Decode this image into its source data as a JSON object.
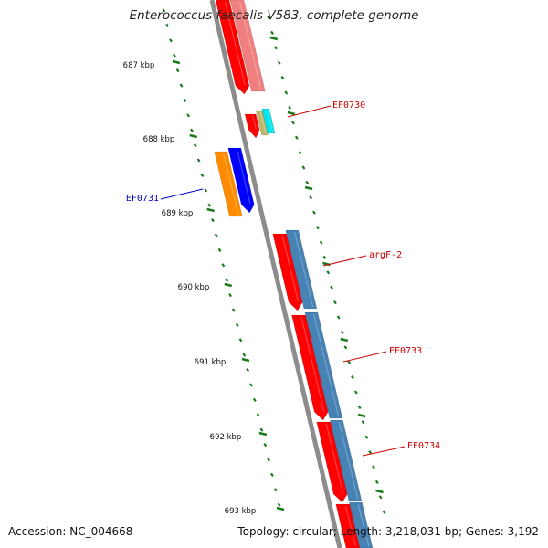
{
  "title": "Enterococcus faecalis V583, complete genome",
  "footer": {
    "accession": "Accession: NC_004668",
    "summary": "Topology: circular; Length: 3,218,031 bp; Genes: 3,192"
  },
  "colors": {
    "backbone": "#8c8c8c",
    "tick": "#1a7a1a",
    "gene_red": "#ff0000",
    "gene_pink": "#f08080",
    "gene_steel": "#4682b4",
    "gene_orange": "#ff8c00",
    "gene_blue": "#0000ff",
    "gene_cyan": "#00e5ee",
    "gene_khaki": "#bdb76b",
    "label_red": "#cc0000",
    "label_blue": "#0000cc"
  },
  "kbp_ticks": [
    {
      "label": "687 kbp"
    },
    {
      "label": "688 kbp"
    },
    {
      "label": "689 kbp"
    },
    {
      "label": "690 kbp"
    },
    {
      "label": "691 kbp"
    },
    {
      "label": "692 kbp"
    },
    {
      "label": "693 kbp"
    }
  ],
  "gene_labels": [
    {
      "text": "EF0730",
      "color": "#cc0000"
    },
    {
      "text": "EF0731",
      "color": "#0000cc"
    },
    {
      "text": "argF-2",
      "color": "#cc0000"
    },
    {
      "text": "EF0733",
      "color": "#cc0000"
    },
    {
      "text": "EF0734",
      "color": "#cc0000"
    }
  ]
}
